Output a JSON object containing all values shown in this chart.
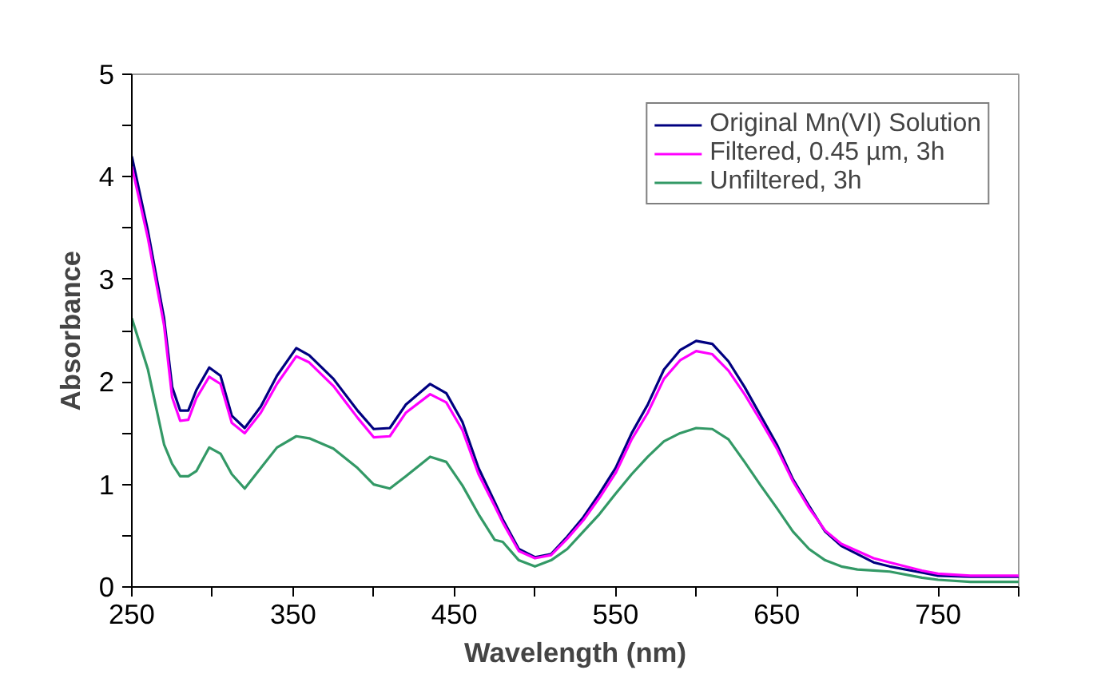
{
  "chart_data": {
    "type": "line",
    "xlabel": "Wavelength (nm)",
    "ylabel": "Absorbance",
    "x": [
      250,
      260,
      270,
      275,
      280,
      285,
      290,
      298,
      305,
      312,
      320,
      330,
      340,
      352,
      360,
      375,
      390,
      400,
      410,
      420,
      435,
      445,
      455,
      465,
      475,
      480,
      490,
      500,
      510,
      520,
      530,
      540,
      550,
      560,
      570,
      580,
      590,
      600,
      610,
      620,
      630,
      640,
      650,
      660,
      670,
      680,
      690,
      700,
      710,
      720,
      740,
      750,
      770,
      800
    ],
    "series": [
      {
        "name": "Original Mn(VI) Solution",
        "color": "#000080",
        "values": [
          4.2,
          3.47,
          2.62,
          1.95,
          1.72,
          1.72,
          1.92,
          2.14,
          2.06,
          1.67,
          1.55,
          1.76,
          2.06,
          2.33,
          2.26,
          2.03,
          1.72,
          1.54,
          1.55,
          1.78,
          1.98,
          1.89,
          1.61,
          1.16,
          0.83,
          0.66,
          0.37,
          0.29,
          0.32,
          0.49,
          0.68,
          0.91,
          1.16,
          1.5,
          1.78,
          2.12,
          2.31,
          2.4,
          2.37,
          2.2,
          1.95,
          1.67,
          1.39,
          1.05,
          0.79,
          0.54,
          0.4,
          0.32,
          0.24,
          0.2,
          0.14,
          0.11,
          0.1,
          0.1
        ]
      },
      {
        "name": "Filtered, 0.45 µm, 3h",
        "color": "#ff00ff",
        "values": [
          4.1,
          3.4,
          2.55,
          1.85,
          1.62,
          1.63,
          1.84,
          2.05,
          1.98,
          1.6,
          1.5,
          1.7,
          1.98,
          2.25,
          2.19,
          1.96,
          1.65,
          1.46,
          1.47,
          1.7,
          1.88,
          1.8,
          1.53,
          1.1,
          0.79,
          0.63,
          0.35,
          0.28,
          0.31,
          0.47,
          0.65,
          0.87,
          1.11,
          1.44,
          1.7,
          2.03,
          2.21,
          2.3,
          2.27,
          2.11,
          1.88,
          1.62,
          1.35,
          1.03,
          0.77,
          0.55,
          0.42,
          0.35,
          0.28,
          0.24,
          0.16,
          0.13,
          0.11,
          0.11
        ]
      },
      {
        "name": "Unfiltered, 3h",
        "color": "#339966",
        "values": [
          2.62,
          2.12,
          1.39,
          1.2,
          1.08,
          1.08,
          1.13,
          1.36,
          1.3,
          1.1,
          0.96,
          1.16,
          1.36,
          1.47,
          1.45,
          1.35,
          1.16,
          1.0,
          0.96,
          1.08,
          1.27,
          1.22,
          0.99,
          0.71,
          0.46,
          0.44,
          0.26,
          0.2,
          0.26,
          0.37,
          0.54,
          0.71,
          0.91,
          1.1,
          1.27,
          1.42,
          1.5,
          1.55,
          1.54,
          1.44,
          1.22,
          0.99,
          0.77,
          0.54,
          0.37,
          0.26,
          0.2,
          0.17,
          0.16,
          0.15,
          0.09,
          0.07,
          0.05,
          0.05
        ]
      }
    ],
    "xlim": [
      250,
      800
    ],
    "ylim": [
      0,
      5
    ],
    "xticks": [
      250,
      {
        "value": 300,
        "label": null
      },
      350,
      {
        "value": 400,
        "label": null
      },
      450,
      {
        "value": 500,
        "label": null
      },
      550,
      {
        "value": 600,
        "label": null
      },
      650,
      {
        "value": 700,
        "label": null
      },
      750,
      {
        "value": 800,
        "label": null
      }
    ],
    "yticks": [
      0,
      {
        "value": 0.5,
        "label": null
      },
      1,
      {
        "value": 1.5,
        "label": null
      },
      2,
      {
        "value": 2.5,
        "label": null
      },
      3,
      {
        "value": 3.5,
        "label": null
      },
      4,
      {
        "value": 4.5,
        "label": null
      },
      5
    ],
    "grid": false,
    "legend": "top right",
    "marker": "none",
    "line_style": "solid"
  }
}
